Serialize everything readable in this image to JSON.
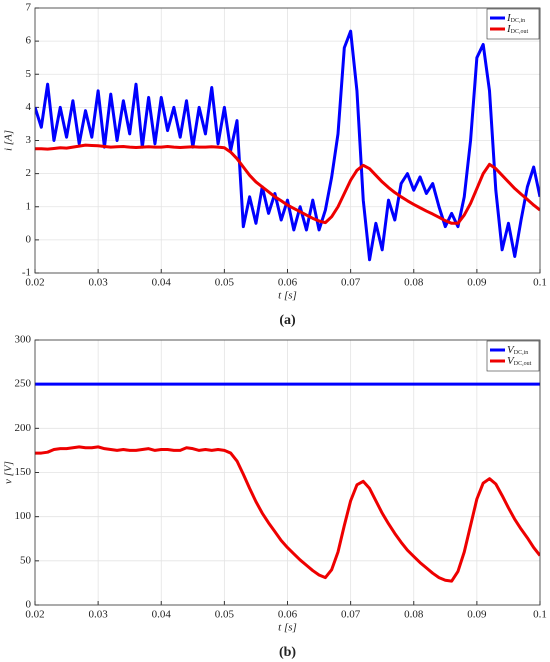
{
  "chart_data": [
    {
      "type": "line",
      "caption": "(a)",
      "xlabel": "t [s]",
      "ylabel": "i [A]",
      "xlim": [
        0.02,
        0.1
      ],
      "xticks": [
        0.02,
        0.03,
        0.04,
        0.05,
        0.06,
        0.07,
        0.08,
        0.09,
        0.1
      ],
      "ylim": [
        -1,
        7
      ],
      "yticks": [
        -1,
        0,
        1,
        2,
        3,
        4,
        5,
        6,
        7
      ],
      "grid": true,
      "legend": "top-right",
      "x": [
        0.02,
        0.021,
        0.022,
        0.023,
        0.024,
        0.025,
        0.026,
        0.027,
        0.028,
        0.029,
        0.03,
        0.031,
        0.032,
        0.033,
        0.034,
        0.035,
        0.036,
        0.037,
        0.038,
        0.039,
        0.04,
        0.041,
        0.042,
        0.043,
        0.044,
        0.045,
        0.046,
        0.047,
        0.048,
        0.049,
        0.05,
        0.051,
        0.052,
        0.053,
        0.054,
        0.055,
        0.056,
        0.057,
        0.058,
        0.059,
        0.06,
        0.061,
        0.062,
        0.063,
        0.064,
        0.065,
        0.066,
        0.067,
        0.068,
        0.069,
        0.07,
        0.071,
        0.072,
        0.073,
        0.074,
        0.075,
        0.076,
        0.077,
        0.078,
        0.079,
        0.08,
        0.081,
        0.082,
        0.083,
        0.084,
        0.085,
        0.086,
        0.087,
        0.088,
        0.089,
        0.09,
        0.091,
        0.092,
        0.093,
        0.094,
        0.095,
        0.096,
        0.097,
        0.098,
        0.099,
        0.1
      ],
      "series": [
        {
          "name": "I",
          "name_sub": "DC,in",
          "color": "#0000ff",
          "values": [
            4.0,
            3.4,
            4.7,
            3.0,
            4.0,
            3.1,
            4.2,
            2.9,
            3.9,
            3.1,
            4.5,
            2.8,
            4.4,
            3.0,
            4.2,
            3.2,
            4.7,
            2.8,
            4.3,
            2.9,
            4.3,
            3.3,
            4.0,
            3.1,
            4.2,
            2.8,
            4.0,
            3.2,
            4.6,
            2.9,
            4.0,
            2.7,
            3.6,
            0.4,
            1.3,
            0.5,
            1.6,
            0.8,
            1.4,
            0.6,
            1.2,
            0.3,
            1.0,
            0.3,
            1.2,
            0.3,
            0.9,
            1.9,
            3.2,
            5.8,
            6.3,
            4.5,
            1.2,
            -0.6,
            0.5,
            -0.3,
            1.2,
            0.6,
            1.7,
            2.0,
            1.5,
            1.9,
            1.4,
            1.7,
            1.0,
            0.4,
            0.8,
            0.4,
            1.3,
            3.0,
            5.5,
            5.9,
            4.5,
            1.5,
            -0.3,
            0.5,
            -0.5,
            0.6,
            1.6,
            2.2,
            1.3
          ]
        },
        {
          "name": "I",
          "name_sub": "DC,out",
          "color": "#ee0000",
          "values": [
            2.75,
            2.75,
            2.74,
            2.76,
            2.78,
            2.77,
            2.8,
            2.83,
            2.86,
            2.85,
            2.84,
            2.82,
            2.8,
            2.81,
            2.82,
            2.8,
            2.79,
            2.8,
            2.81,
            2.8,
            2.8,
            2.82,
            2.8,
            2.79,
            2.8,
            2.81,
            2.8,
            2.8,
            2.81,
            2.8,
            2.78,
            2.65,
            2.45,
            2.2,
            1.95,
            1.75,
            1.6,
            1.45,
            1.3,
            1.18,
            1.05,
            0.95,
            0.85,
            0.75,
            0.65,
            0.57,
            0.52,
            0.7,
            1.0,
            1.4,
            1.8,
            2.1,
            2.25,
            2.15,
            1.95,
            1.75,
            1.58,
            1.43,
            1.3,
            1.18,
            1.07,
            0.97,
            0.87,
            0.78,
            0.68,
            0.58,
            0.5,
            0.5,
            0.75,
            1.1,
            1.55,
            2.0,
            2.28,
            2.15,
            1.95,
            1.75,
            1.55,
            1.38,
            1.22,
            1.05,
            0.9
          ]
        }
      ]
    },
    {
      "type": "line",
      "caption": "(b)",
      "xlabel": "t [s]",
      "ylabel": "v [V]",
      "xlim": [
        0.02,
        0.1
      ],
      "xticks": [
        0.02,
        0.03,
        0.04,
        0.05,
        0.06,
        0.07,
        0.08,
        0.09,
        0.1
      ],
      "ylim": [
        0,
        300
      ],
      "yticks": [
        0,
        50,
        100,
        150,
        200,
        250,
        300
      ],
      "grid": true,
      "legend": "top-right",
      "x": [
        0.02,
        0.021,
        0.022,
        0.023,
        0.024,
        0.025,
        0.026,
        0.027,
        0.028,
        0.029,
        0.03,
        0.031,
        0.032,
        0.033,
        0.034,
        0.035,
        0.036,
        0.037,
        0.038,
        0.039,
        0.04,
        0.041,
        0.042,
        0.043,
        0.044,
        0.045,
        0.046,
        0.047,
        0.048,
        0.049,
        0.05,
        0.051,
        0.052,
        0.053,
        0.054,
        0.055,
        0.056,
        0.057,
        0.058,
        0.059,
        0.06,
        0.061,
        0.062,
        0.063,
        0.064,
        0.065,
        0.066,
        0.067,
        0.068,
        0.069,
        0.07,
        0.071,
        0.072,
        0.073,
        0.074,
        0.075,
        0.076,
        0.077,
        0.078,
        0.079,
        0.08,
        0.081,
        0.082,
        0.083,
        0.084,
        0.085,
        0.086,
        0.087,
        0.088,
        0.089,
        0.09,
        0.091,
        0.092,
        0.093,
        0.094,
        0.095,
        0.096,
        0.097,
        0.098,
        0.099,
        0.1
      ],
      "series": [
        {
          "name": "V",
          "name_sub": "DC,in",
          "color": "#0000ff",
          "values": [
            250,
            250,
            250,
            250,
            250,
            250,
            250,
            250,
            250,
            250,
            250,
            250,
            250,
            250,
            250,
            250,
            250,
            250,
            250,
            250,
            250,
            250,
            250,
            250,
            250,
            250,
            250,
            250,
            250,
            250,
            250,
            250,
            250,
            250,
            250,
            250,
            250,
            250,
            250,
            250,
            250,
            250,
            250,
            250,
            250,
            250,
            250,
            250,
            250,
            250,
            250,
            250,
            250,
            250,
            250,
            250,
            250,
            250,
            250,
            250,
            250,
            250,
            250,
            250,
            250,
            250,
            250,
            250,
            250,
            250,
            250,
            250,
            250,
            250,
            250,
            250,
            250,
            250,
            250,
            250,
            250
          ]
        },
        {
          "name": "V",
          "name_sub": "DC,out",
          "color": "#ee0000",
          "values": [
            172,
            172,
            173,
            176,
            177,
            177,
            178,
            179,
            178,
            178,
            179,
            177,
            176,
            175,
            176,
            175,
            175,
            176,
            177,
            175,
            176,
            176,
            175,
            175,
            178,
            177,
            175,
            176,
            175,
            176,
            175,
            172,
            163,
            148,
            132,
            117,
            104,
            93,
            83,
            73,
            65,
            58,
            51,
            45,
            39,
            34,
            31,
            40,
            60,
            90,
            118,
            136,
            140,
            132,
            118,
            104,
            92,
            81,
            71,
            62,
            55,
            48,
            42,
            36,
            31,
            28,
            27,
            38,
            60,
            90,
            120,
            138,
            143,
            137,
            124,
            110,
            97,
            86,
            76,
            65,
            56
          ]
        }
      ]
    }
  ]
}
